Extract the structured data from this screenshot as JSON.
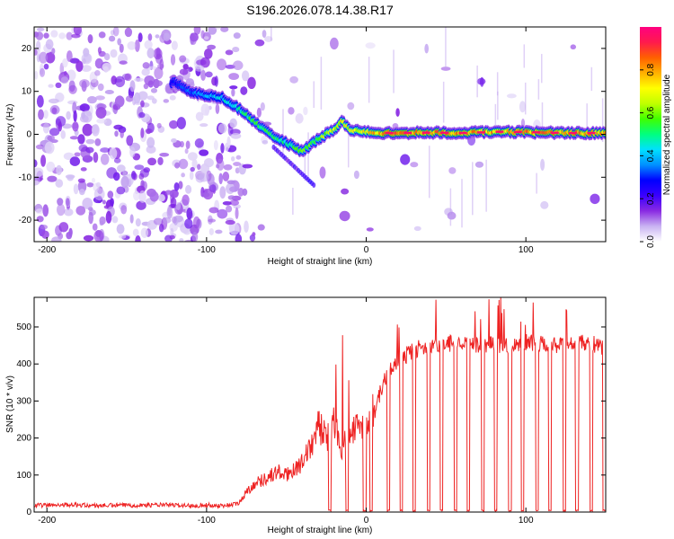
{
  "page": {
    "title": "S196.2026.078.14.38.R17"
  },
  "chart_data": [
    {
      "type": "heatmap",
      "name": "spectrogram",
      "title": "S196.2026.078.14.38.R17",
      "xlabel": "Height of straight line (km)",
      "ylabel": "Frequency (Hz)",
      "xlim": [
        -208,
        150
      ],
      "ylim": [
        -25,
        25
      ],
      "x_ticks": [
        -200,
        -100,
        0,
        100
      ],
      "y_ticks": [
        -20,
        -10,
        0,
        10,
        20
      ],
      "colorbar": {
        "label": "Normalized spectral amplitude",
        "range": [
          0,
          1
        ],
        "ticks": [
          0,
          0.2,
          0.4,
          0.6,
          0.8
        ],
        "colors": [
          "#ffffff",
          "#c9b3f2",
          "#8a2be2",
          "#3a00ff",
          "#0000ff",
          "#0090ff",
          "#00e0ff",
          "#00ff80",
          "#40ff00",
          "#c0ff00",
          "#ffff00",
          "#ffb000",
          "#ff6000",
          "#ff1a4d",
          "#ff0080"
        ]
      },
      "ridge": {
        "description": "dominant frequency track",
        "x": [
          -120,
          -110,
          -100,
          -90,
          -80,
          -70,
          -60,
          -50,
          -40,
          -30,
          -20,
          -15,
          -10,
          0,
          10,
          20,
          40,
          60,
          80,
          100,
          120,
          150
        ],
        "frequency": [
          12,
          10,
          9,
          8.5,
          6,
          3,
          0,
          -2,
          -4,
          -1,
          1,
          3,
          1,
          0.5,
          0.3,
          0.3,
          0.4,
          0.3,
          0.6,
          0.5,
          0.3,
          0.3
        ],
        "amplitude": [
          0.3,
          0.35,
          0.4,
          0.45,
          0.5,
          0.55,
          0.55,
          0.5,
          0.6,
          0.6,
          0.7,
          0.75,
          0.7,
          0.75,
          0.85,
          0.9,
          0.85,
          0.85,
          0.8,
          0.85,
          0.85,
          0.85
        ]
      }
    },
    {
      "type": "line",
      "name": "snr",
      "xlabel": "Height of straight line (km)",
      "ylabel": "SNR (10 * v/v)",
      "xlim": [
        -208,
        150
      ],
      "ylim": [
        0,
        580
      ],
      "x_ticks": [
        -200,
        -100,
        0,
        100
      ],
      "y_ticks": [
        0,
        100,
        200,
        300,
        400,
        500
      ],
      "color": "#ee2222",
      "x": [
        -208,
        -190,
        -170,
        -150,
        -130,
        -110,
        -100,
        -90,
        -80,
        -75,
        -70,
        -65,
        -60,
        -55,
        -50,
        -45,
        -40,
        -35,
        -30,
        -25,
        -20,
        -15,
        -10,
        -5,
        0,
        5,
        10,
        15,
        20,
        30,
        40,
        50,
        60,
        70,
        80,
        90,
        100,
        110,
        120,
        130,
        140,
        150
      ],
      "y": [
        15,
        18,
        15,
        16,
        17,
        15,
        16,
        15,
        20,
        50,
        70,
        80,
        90,
        100,
        90,
        110,
        120,
        160,
        220,
        180,
        230,
        160,
        200,
        210,
        240,
        260,
        330,
        380,
        400,
        430,
        440,
        445,
        450,
        440,
        445,
        440,
        450,
        445,
        440,
        445,
        450,
        430
      ],
      "dropout_x": [
        -23,
        -12,
        -1,
        3,
        14,
        22,
        30,
        39,
        47,
        56,
        64,
        73,
        81,
        90,
        98,
        107,
        115,
        124,
        132,
        141,
        149
      ]
    }
  ]
}
